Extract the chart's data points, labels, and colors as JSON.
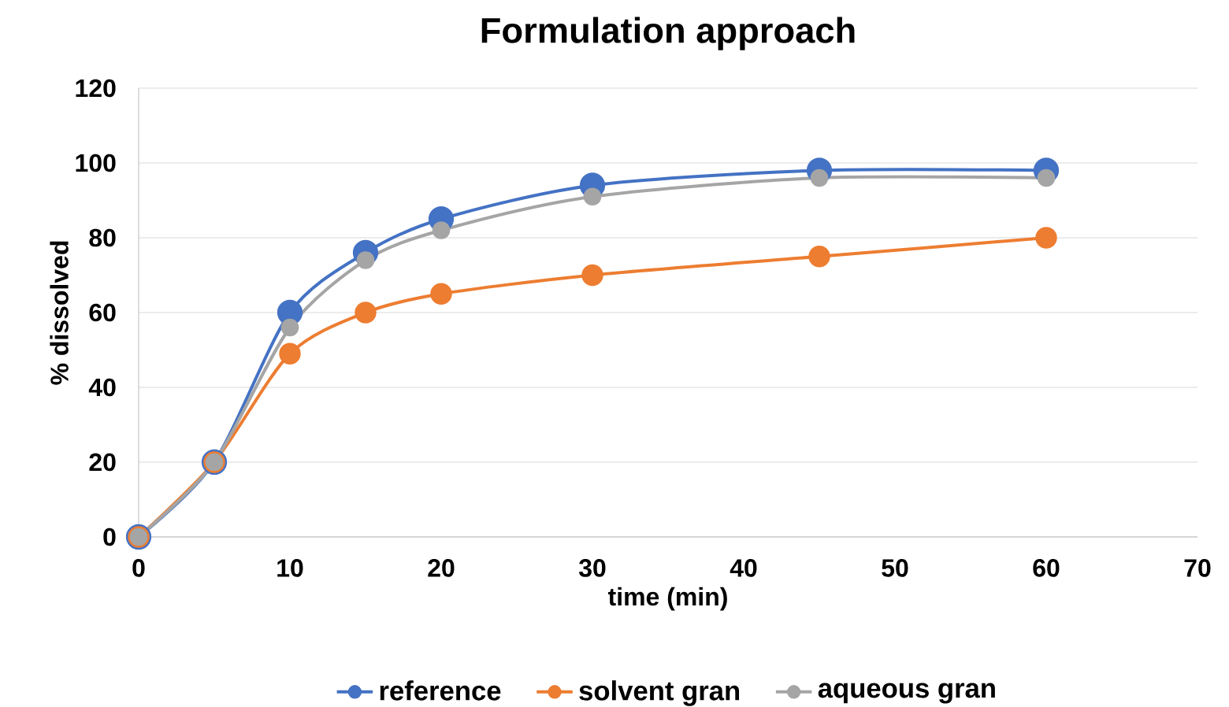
{
  "chart_data": {
    "type": "line",
    "title": "Formulation approach",
    "xlabel": "time (min)",
    "ylabel": "% dissolved",
    "x": [
      0,
      5,
      10,
      15,
      20,
      30,
      45,
      60
    ],
    "series": [
      {
        "name": "reference",
        "color": "#4472c4",
        "values": [
          0,
          20,
          60,
          76,
          85,
          94,
          98,
          98
        ]
      },
      {
        "name": "solvent gran",
        "color": "#ed7d31",
        "values": [
          0,
          20,
          49,
          60,
          65,
          70,
          75,
          80
        ]
      },
      {
        "name": "aqueous gran",
        "color": "#a5a5a5",
        "values": [
          0,
          20,
          56,
          74,
          82,
          91,
          96,
          96
        ]
      }
    ],
    "xlim": [
      0,
      70
    ],
    "ylim": [
      0,
      120
    ],
    "xticks": [
      0,
      10,
      20,
      30,
      40,
      50,
      60,
      70
    ],
    "yticks": [
      0,
      20,
      40,
      60,
      80,
      100,
      120
    ],
    "grid": "y",
    "legend": "bottom",
    "marker": "circle"
  }
}
